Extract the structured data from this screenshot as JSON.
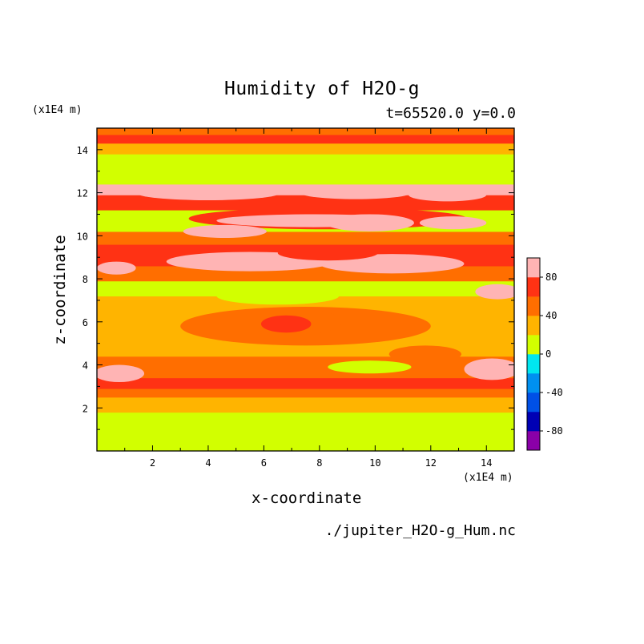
{
  "chart_data": {
    "type": "heatmap",
    "title": "Humidity of H2O-g",
    "subtitle": "t=65520.0 y=0.0",
    "xlabel": "x-coordinate",
    "ylabel": "z-coordinate",
    "x_unit": "(x1E4 m)",
    "y_unit": "(x1E4 m)",
    "xlim": [
      0,
      15
    ],
    "ylim": [
      0,
      15
    ],
    "x_ticks": [
      "2",
      "4",
      "6",
      "8",
      "10",
      "12",
      "14"
    ],
    "y_ticks": [
      "2",
      "4",
      "6",
      "8",
      "10",
      "12",
      "14"
    ],
    "colorbar": {
      "levels": [
        -100,
        -80,
        -60,
        -40,
        -20,
        0,
        20,
        40,
        60,
        80,
        100
      ],
      "colors": [
        "#8a00a8",
        "#0000b4",
        "#0050e6",
        "#0090f0",
        "#00e6f0",
        "#d2ff00",
        "#ffb400",
        "#ff6e00",
        "#ff3214",
        "#ffb4b4"
      ],
      "tick_labels": [
        "80",
        "40",
        "0",
        "-40",
        "-80"
      ]
    },
    "bands": [
      {
        "z_from": 0.0,
        "z_to": 1.8,
        "level": 5
      },
      {
        "z_from": 1.8,
        "z_to": 2.5,
        "level": 6
      },
      {
        "z_from": 2.5,
        "z_to": 2.9,
        "level": 7
      },
      {
        "z_from": 2.9,
        "z_to": 3.4,
        "level": 8
      },
      {
        "z_from": 3.4,
        "z_to": 4.4,
        "level": 7
      },
      {
        "z_from": 4.4,
        "z_to": 7.2,
        "level": 6
      },
      {
        "z_from": 7.2,
        "z_to": 7.9,
        "level": 5
      },
      {
        "z_from": 7.9,
        "z_to": 8.6,
        "level": 7
      },
      {
        "z_from": 8.6,
        "z_to": 9.6,
        "level": 8
      },
      {
        "z_from": 9.6,
        "z_to": 10.2,
        "level": 7
      },
      {
        "z_from": 10.2,
        "z_to": 11.2,
        "level": 5
      },
      {
        "z_from": 11.2,
        "z_to": 11.9,
        "level": 8
      },
      {
        "z_from": 11.9,
        "z_to": 12.4,
        "level": 9
      },
      {
        "z_from": 12.4,
        "z_to": 13.8,
        "level": 5
      },
      {
        "z_from": 13.8,
        "z_to": 14.3,
        "level": 6
      },
      {
        "z_from": 14.3,
        "z_to": 14.7,
        "level": 8
      },
      {
        "z_from": 14.7,
        "z_to": 15.0,
        "level": 7
      }
    ],
    "blobs": [
      {
        "x": 7.5,
        "z": 5.8,
        "rx": 4.5,
        "rz": 0.9,
        "level": 7
      },
      {
        "x": 7.2,
        "z": 6.0,
        "rx": 1.6,
        "rz": 0.6,
        "level": 7
      },
      {
        "x": 6.8,
        "z": 5.9,
        "rx": 0.9,
        "rz": 0.4,
        "level": 8
      },
      {
        "x": 9.8,
        "z": 3.9,
        "rx": 1.5,
        "rz": 0.3,
        "level": 5
      },
      {
        "x": 6.5,
        "z": 7.2,
        "rx": 2.2,
        "rz": 0.4,
        "level": 5
      },
      {
        "x": 0.8,
        "z": 3.6,
        "rx": 0.9,
        "rz": 0.4,
        "level": 9
      },
      {
        "x": 14.2,
        "z": 3.8,
        "rx": 1.0,
        "rz": 0.5,
        "level": 9
      },
      {
        "x": 0.7,
        "z": 8.5,
        "rx": 0.7,
        "rz": 0.3,
        "level": 9
      },
      {
        "x": 14.4,
        "z": 7.4,
        "rx": 0.8,
        "rz": 0.35,
        "level": 9
      },
      {
        "x": 5.5,
        "z": 8.8,
        "rx": 3.0,
        "rz": 0.45,
        "level": 9
      },
      {
        "x": 10.6,
        "z": 8.7,
        "rx": 2.6,
        "rz": 0.45,
        "level": 9
      },
      {
        "x": 8.3,
        "z": 9.2,
        "rx": 1.8,
        "rz": 0.35,
        "level": 8
      },
      {
        "x": 8.3,
        "z": 10.8,
        "rx": 5.0,
        "rz": 0.5,
        "level": 8
      },
      {
        "x": 7.8,
        "z": 10.7,
        "rx": 3.5,
        "rz": 0.3,
        "level": 9
      },
      {
        "x": 4.6,
        "z": 10.2,
        "rx": 1.5,
        "rz": 0.3,
        "level": 9
      },
      {
        "x": 9.8,
        "z": 10.6,
        "rx": 1.6,
        "rz": 0.4,
        "level": 9
      },
      {
        "x": 12.8,
        "z": 10.6,
        "rx": 1.2,
        "rz": 0.3,
        "level": 9
      },
      {
        "x": 4.0,
        "z": 12.0,
        "rx": 2.6,
        "rz": 0.35,
        "level": 9
      },
      {
        "x": 9.3,
        "z": 12.0,
        "rx": 2.0,
        "rz": 0.3,
        "level": 9
      },
      {
        "x": 12.6,
        "z": 11.9,
        "rx": 1.4,
        "rz": 0.3,
        "level": 9
      },
      {
        "x": 11.8,
        "z": 4.5,
        "rx": 1.3,
        "rz": 0.4,
        "level": 7
      }
    ]
  },
  "title": "Humidity of H2O-g",
  "subtitle": "t=65520.0 y=0.0",
  "x_unit_label": "(x1E4 m)",
  "y_unit_label": "(x1E4 m)",
  "xlabel": "x-coordinate",
  "ylabel": "z-coordinate",
  "filename": "./jupiter_H2O-g_Hum.nc"
}
